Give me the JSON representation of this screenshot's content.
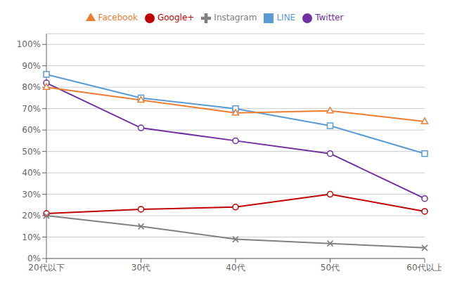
{
  "chart_data": {
    "type": "line",
    "categories": [
      "20代以下",
      "30代",
      "40代",
      "50代",
      "60代以上"
    ],
    "series": [
      {
        "name": "LINE",
        "color": "#5B9BD5",
        "marker": "square",
        "values": [
          86,
          75,
          70,
          62,
          49
        ]
      },
      {
        "name": "Twitter",
        "color": "#7030A0",
        "marker": "circle",
        "values": [
          82,
          61,
          55,
          49,
          28
        ]
      },
      {
        "name": "Facebook",
        "color": "#ED7D31",
        "marker": "triangle",
        "values": [
          80,
          74,
          68,
          69,
          64
        ]
      },
      {
        "name": "Google+",
        "color": "#C00000",
        "marker": "circle",
        "values": [
          21,
          23,
          24,
          30,
          22
        ]
      },
      {
        "name": "Instagram",
        "color": "#808080",
        "marker": "x",
        "values": [
          20,
          15,
          9,
          7,
          5
        ]
      }
    ],
    "ylim": [
      0,
      105
    ],
    "yticks": [
      {
        "value": 0,
        "label": "0%"
      },
      {
        "value": 10,
        "label": "10%"
      },
      {
        "value": 20,
        "label": "20%"
      },
      {
        "value": 30,
        "label": "30%"
      },
      {
        "value": 40,
        "label": "40%"
      },
      {
        "value": 50,
        "label": "50%"
      },
      {
        "value": 60,
        "label": "60%"
      },
      {
        "value": 70,
        "label": "70%"
      },
      {
        "value": 80,
        "label": "80%"
      },
      {
        "value": 90,
        "label": "90%"
      },
      {
        "value": 100,
        "label": "100%"
      }
    ],
    "grid": true,
    "legend": "top"
  }
}
